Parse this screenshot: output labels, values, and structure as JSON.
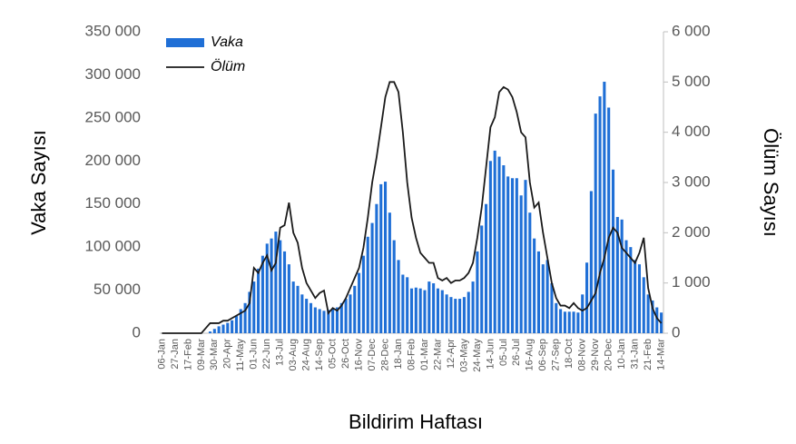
{
  "chart_data": {
    "type": "bar",
    "x_label": "Bildirim Haftası",
    "y_label": "Vaka Sayısı",
    "y2_label": "Ölüm Sayısı",
    "categories": [
      "06-Jan",
      null,
      null,
      "27-Jan",
      null,
      null,
      "17-Feb",
      null,
      null,
      "09-Mar",
      null,
      null,
      "30-Mar",
      null,
      null,
      "20-Apr",
      null,
      null,
      "11-May",
      null,
      null,
      "01-Jun",
      null,
      null,
      "22-Jun",
      null,
      null,
      "13-Jul",
      null,
      null,
      "03-Aug",
      null,
      null,
      "24-Aug",
      null,
      null,
      "14-Sep",
      null,
      null,
      "05-Oct",
      null,
      null,
      "26-Oct",
      null,
      null,
      "16-Nov",
      null,
      null,
      "07-Dec",
      null,
      null,
      "28-Dec",
      null,
      null,
      "18-Jan",
      null,
      null,
      "08-Feb",
      null,
      null,
      "01-Mar",
      null,
      null,
      "22-Mar",
      null,
      null,
      "12-Apr",
      null,
      null,
      "03-May",
      null,
      null,
      "24-May",
      null,
      null,
      "14-Jun",
      null,
      null,
      "05-Jul",
      null,
      null,
      "26-Jul",
      null,
      null,
      "16-Aug",
      null,
      null,
      "06-Sep",
      null,
      null,
      "27-Sep",
      null,
      null,
      "18-Oct",
      null,
      null,
      "08-Nov",
      null,
      null,
      "29-Nov",
      null,
      null,
      "20-Dec",
      null,
      null,
      "10-Jan",
      null,
      null,
      "31-Jan",
      null,
      null,
      "21-Feb",
      null,
      null,
      "14-Mar"
    ],
    "series": [
      {
        "name": "Vaka",
        "type": "bar",
        "color": "#1f6fd6",
        "values": [
          0,
          0,
          0,
          0,
          0,
          0,
          0,
          0,
          0,
          0,
          0,
          2000,
          5000,
          8000,
          10000,
          12000,
          15000,
          20000,
          28000,
          35000,
          48000,
          60000,
          75000,
          90000,
          104000,
          110000,
          118000,
          108000,
          95000,
          80000,
          60000,
          55000,
          45000,
          40000,
          35000,
          30000,
          28000,
          26000,
          27000,
          28000,
          30000,
          35000,
          40000,
          45000,
          55000,
          70000,
          90000,
          112000,
          128000,
          150000,
          173000,
          176000,
          140000,
          108000,
          85000,
          68000,
          65000,
          52000,
          53000,
          52000,
          50000,
          60000,
          58000,
          52000,
          50000,
          45000,
          42000,
          40000,
          40000,
          42000,
          48000,
          60000,
          95000,
          125000,
          150000,
          200000,
          212000,
          205000,
          195000,
          182000,
          180000,
          180000,
          160000,
          178000,
          140000,
          110000,
          95000,
          80000,
          85000,
          58000,
          35000,
          28000,
          25000,
          25000,
          25000,
          24000,
          45000,
          82000,
          165000,
          255000,
          275000,
          292000,
          262000,
          190000,
          135000,
          132000,
          108000,
          100000,
          85000,
          80000,
          65000,
          45000,
          38000,
          30000,
          24000
        ]
      },
      {
        "name": "Ölüm",
        "type": "line",
        "axis": "y2",
        "color": "#1a1a1a",
        "values": [
          0,
          0,
          0,
          0,
          0,
          0,
          0,
          0,
          0,
          0,
          100,
          200,
          200,
          200,
          250,
          250,
          300,
          350,
          400,
          450,
          600,
          1300,
          1200,
          1400,
          1550,
          1250,
          1400,
          2100,
          2150,
          2600,
          2000,
          1800,
          1300,
          1000,
          850,
          700,
          800,
          850,
          400,
          500,
          450,
          550,
          700,
          900,
          1100,
          1300,
          1700,
          2300,
          3000,
          3500,
          4100,
          4700,
          5000,
          5000,
          4800,
          4000,
          3000,
          2300,
          1900,
          1600,
          1500,
          1400,
          1400,
          1100,
          1050,
          1100,
          1000,
          1050,
          1050,
          1100,
          1200,
          1400,
          1900,
          2500,
          3300,
          4100,
          4300,
          4800,
          4900,
          4850,
          4700,
          4400,
          4000,
          3900,
          3000,
          2500,
          2600,
          2000,
          1500,
          1000,
          700,
          550,
          550,
          500,
          600,
          500,
          450,
          500,
          650,
          800,
          1200,
          1500,
          1900,
          2100,
          2000,
          1700,
          1600,
          1500,
          1400,
          1600,
          1900,
          900,
          500,
          300,
          200
        ]
      }
    ],
    "ylim": [
      0,
      350000
    ],
    "yticks": [
      0,
      {
        "value": 50000,
        "label": "50 000"
      },
      {
        "value": 100000,
        "label": "100 000"
      },
      {
        "value": 150000,
        "label": "150 000"
      },
      {
        "value": 200000,
        "label": "200 000"
      },
      {
        "value": 250000,
        "label": "250 000"
      },
      {
        "value": 300000,
        "label": "300 000"
      },
      {
        "value": 350000,
        "label": "350 000"
      }
    ],
    "y2lim": [
      0,
      6000
    ],
    "y2ticks": [
      0,
      {
        "value": 1000,
        "label": "1 000"
      },
      {
        "value": 2000,
        "label": "2 000"
      },
      {
        "value": 3000,
        "label": "3 000"
      },
      {
        "value": 4000,
        "label": "4 000"
      },
      {
        "value": 5000,
        "label": "5 000"
      },
      {
        "value": 6000,
        "label": "6 000"
      }
    ],
    "grid": false,
    "legend": "upper left"
  }
}
